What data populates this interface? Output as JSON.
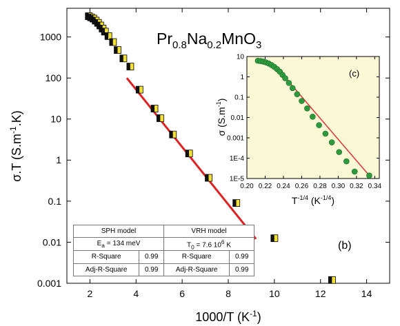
{
  "chart_data": [
    {
      "type": "scatter",
      "title_base": "Pr",
      "title_sub1": "0.8",
      "title_mid": "Na",
      "title_sub2": "0.2",
      "title_end": "MnO",
      "title_sub3": "3",
      "panel_label": "(b)",
      "xlabel_base": "1000/T (K",
      "xlabel_sup": "-1",
      "xlabel_end": ")",
      "ylabel_base": "σ.T (S.m",
      "ylabel_sup": "-1",
      "ylabel_end": ".K)",
      "xlim": [
        1,
        15
      ],
      "ylim": [
        0.001,
        5000
      ],
      "y_scale": "log",
      "x_ticks": [
        "2",
        "4",
        "6",
        "8",
        "10",
        "12",
        "14"
      ],
      "y_ticks": [
        "0.001",
        "0.01",
        "0.1",
        "1",
        "10",
        "100",
        "1000"
      ],
      "marker_colors": [
        "#111111",
        "#f2e035"
      ],
      "series": [
        {
          "points": [
            [
              1.95,
              3200
            ],
            [
              2.05,
              3000
            ],
            [
              2.15,
              2800
            ],
            [
              2.25,
              2500
            ],
            [
              2.35,
              2200
            ],
            [
              2.45,
              1900
            ],
            [
              2.55,
              1600
            ],
            [
              2.65,
              1350
            ],
            [
              2.8,
              1050
            ],
            [
              3.0,
              750
            ],
            [
              3.2,
              480
            ],
            [
              3.45,
              300
            ],
            [
              3.75,
              190
            ],
            [
              4.15,
              52
            ],
            [
              4.8,
              18
            ],
            [
              5.05,
              10.5
            ],
            [
              5.6,
              4.2
            ],
            [
              6.3,
              1.45
            ],
            [
              7.15,
              0.37
            ],
            [
              8.35,
              0.09
            ],
            [
              10.0,
              0.0125
            ],
            [
              12.5,
              0.0012
            ]
          ]
        }
      ],
      "fit_line": {
        "color": "#e02020",
        "from": [
          3.6,
          100
        ],
        "to": [
          9.2,
          0.012
        ]
      }
    },
    {
      "type": "scatter",
      "panel_label": "(c)",
      "xlabel_base": "T",
      "xlabel_sup": "-1/4",
      "xlabel_mid": " (K",
      "xlabel_sup2": "-1/4",
      "xlabel_end": ")",
      "ylabel_base": "σ (S.m",
      "ylabel_sup": "-1",
      "ylabel_end": ")",
      "xlim": [
        0.2,
        0.345
      ],
      "ylim": [
        1e-05,
        10
      ],
      "y_scale": "log",
      "background": "#fbf8d6",
      "x_ticks": [
        "0.20",
        "0.22",
        "0.24",
        "0.26",
        "0.28",
        "0.30",
        "0.32",
        "0.34"
      ],
      "y_ticks": [
        "1E-5",
        "1E-4",
        "0.001",
        "0.01",
        "0.1",
        "1",
        "10"
      ],
      "marker_color": "#2e9a3e",
      "series": [
        {
          "points": [
            [
              0.212,
              6.2
            ],
            [
              0.215,
              6.0
            ],
            [
              0.218,
              5.6
            ],
            [
              0.221,
              5.1
            ],
            [
              0.224,
              4.5
            ],
            [
              0.227,
              3.8
            ],
            [
              0.23,
              3.1
            ],
            [
              0.233,
              2.4
            ],
            [
              0.236,
              1.8
            ],
            [
              0.239,
              1.25
            ],
            [
              0.242,
              0.85
            ],
            [
              0.246,
              0.5
            ],
            [
              0.25,
              0.28
            ],
            [
              0.255,
              0.14
            ],
            [
              0.26,
              0.065
            ],
            [
              0.266,
              0.028
            ],
            [
              0.272,
              0.011
            ],
            [
              0.279,
              0.0042
            ],
            [
              0.286,
              0.0016
            ],
            [
              0.293,
              0.0006
            ],
            [
              0.301,
              0.0002
            ],
            [
              0.309,
              7e-05
            ],
            [
              0.318,
              2.2e-05
            ],
            [
              0.334,
              1.4e-05
            ]
          ]
        }
      ],
      "fit_line": {
        "color": "#e03030",
        "from": [
          0.236,
          1.9
        ],
        "to": [
          0.334,
          1.4e-05
        ]
      }
    }
  ],
  "table": {
    "rows": [
      [
        "SPH model",
        "VRH model"
      ],
      [
        "Ea = 134 meV",
        "T0 = 7.6 10^6 K"
      ],
      [
        "R-Square",
        "0.99",
        "R-Square",
        "0.99"
      ],
      [
        "Adj-R-Square",
        "0.99",
        "Adj-R-Square",
        "0.99"
      ]
    ],
    "sph_label": "SPH model",
    "vrh_label": "VRH model",
    "ea_base": "E",
    "ea_sub": "a",
    "ea_val": " = 134 meV",
    "t0_base": "T",
    "t0_sub": "0",
    "t0_val": " = 7.6 10",
    "t0_sup": "6",
    "t0_unit": " K",
    "r_label": "R-Square",
    "r_sph": "0.99",
    "r_vrh": "0.99",
    "adj_label": "Adj-R-Square",
    "adj_sph": "0.99",
    "adj_vrh": "0.99"
  }
}
